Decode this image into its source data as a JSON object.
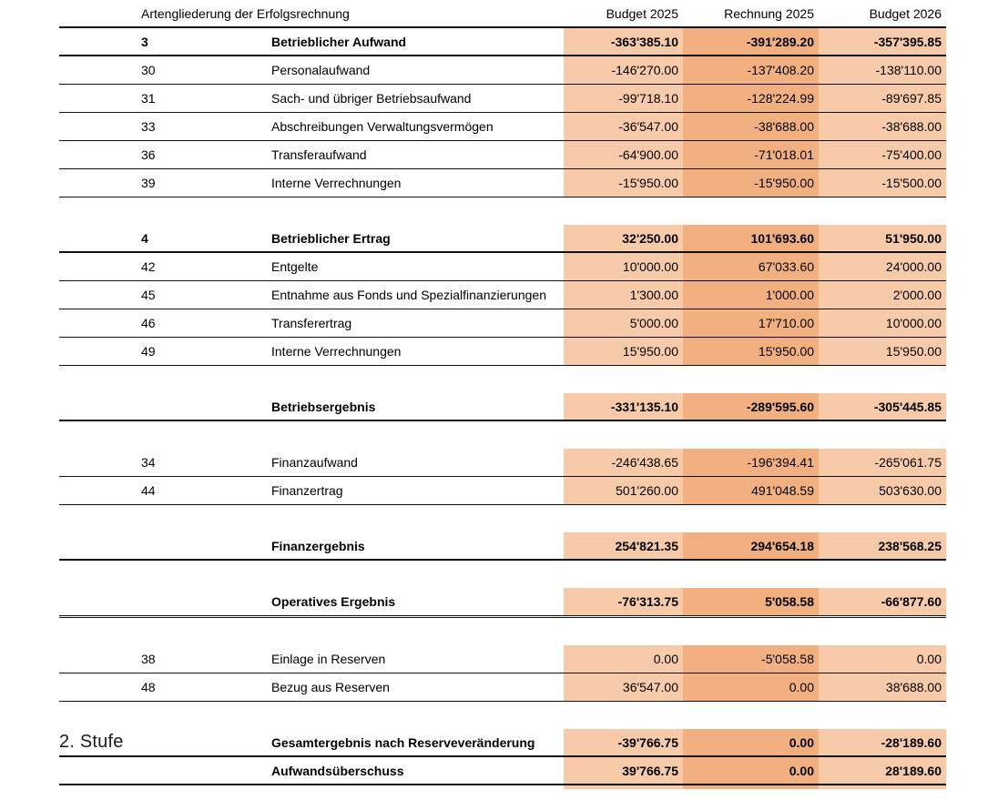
{
  "header": {
    "row_axis_label": "Artengliederung der Erfolgsrechnung",
    "columns": [
      "Budget 2025",
      "Rechnung 2025",
      "Budget 2026"
    ]
  },
  "stufe_label": "2. Stufe",
  "colors": {
    "value_column_light": "#F7CBA9",
    "value_column_dark": "#F2B080",
    "rule": "#111111"
  },
  "sections": [
    {
      "rows": [
        {
          "code": "3",
          "label": "Betrieblicher Aufwand",
          "bold": true,
          "sep": "thick",
          "values": [
            "-363'385.10",
            "-391'289.20",
            "-357'395.85"
          ]
        },
        {
          "code": "30",
          "label": "Personalaufwand",
          "bold": false,
          "sep": "thin",
          "values": [
            "-146'270.00",
            "-137'408.20",
            "-138'110.00"
          ]
        },
        {
          "code": "31",
          "label": "Sach- und übriger Betriebsaufwand",
          "bold": false,
          "sep": "thin",
          "values": [
            "-99'718.10",
            "-128'224.99",
            "-89'697.85"
          ]
        },
        {
          "code": "33",
          "label": "Abschreibungen Verwaltungsvermögen",
          "bold": false,
          "sep": "thin",
          "values": [
            "-36'547.00",
            "-38'688.00",
            "-38'688.00"
          ]
        },
        {
          "code": "36",
          "label": "Transferaufwand",
          "bold": false,
          "sep": "thin",
          "values": [
            "-64'900.00",
            "-71'018.01",
            "-75'400.00"
          ]
        },
        {
          "code": "39",
          "label": "Interne Verrechnungen",
          "bold": false,
          "sep": "thin",
          "values": [
            "-15'950.00",
            "-15'950.00",
            "-15'500.00"
          ]
        }
      ]
    },
    {
      "rows": [
        {
          "code": "4",
          "label": "Betrieblicher Ertrag",
          "bold": true,
          "sep": "thick",
          "values": [
            "32'250.00",
            "101'693.60",
            "51'950.00"
          ]
        },
        {
          "code": "42",
          "label": "Entgelte",
          "bold": false,
          "sep": "thin",
          "values": [
            "10'000.00",
            "67'033.60",
            "24'000.00"
          ]
        },
        {
          "code": "45",
          "label": "Entnahme aus Fonds und Spezialfinanzierungen",
          "bold": false,
          "sep": "thin",
          "values": [
            "1'300.00",
            "1'000.00",
            "2'000.00"
          ]
        },
        {
          "code": "46",
          "label": "Transferertrag",
          "bold": false,
          "sep": "thin",
          "values": [
            "5'000.00",
            "17'710.00",
            "10'000.00"
          ]
        },
        {
          "code": "49",
          "label": "Interne Verrechnungen",
          "bold": false,
          "sep": "thin",
          "values": [
            "15'950.00",
            "15'950.00",
            "15'950.00"
          ]
        }
      ]
    },
    {
      "rows": [
        {
          "code": "",
          "label": "Betriebsergebnis",
          "bold": true,
          "sep": "thick",
          "values": [
            "-331'135.10",
            "-289'595.60",
            "-305'445.85"
          ]
        }
      ]
    },
    {
      "rows": [
        {
          "code": "34",
          "label": "Finanzaufwand",
          "bold": false,
          "sep": "thin",
          "values": [
            "-246'438.65",
            "-196'394.41",
            "-265'061.75"
          ]
        },
        {
          "code": "44",
          "label": "Finanzertrag",
          "bold": false,
          "sep": "thin",
          "values": [
            "501'260.00",
            "491'048.59",
            "503'630.00"
          ]
        }
      ]
    },
    {
      "rows": [
        {
          "code": "",
          "label": "Finanzergebnis",
          "bold": true,
          "sep": "thick",
          "values": [
            "254'821.35",
            "294'654.18",
            "238'568.25"
          ]
        }
      ]
    },
    {
      "rows": [
        {
          "code": "",
          "label": "Operatives Ergebnis",
          "bold": true,
          "sep": "double",
          "values": [
            "-76'313.75",
            "5'058.58",
            "-66'877.60"
          ]
        }
      ]
    },
    {
      "rows": [
        {
          "code": "38",
          "label": "Einlage in Reserven",
          "bold": false,
          "sep": "thin",
          "values": [
            "0.00",
            "-5'058.58",
            "0.00"
          ]
        },
        {
          "code": "48",
          "label": "Bezug aus Reserven",
          "bold": false,
          "sep": "thin",
          "values": [
            "36'547.00",
            "0.00",
            "38'688.00"
          ]
        }
      ]
    },
    {
      "tail": true,
      "rows": [
        {
          "code": "",
          "label": "Gesamtergebnis nach Reserveveränderung",
          "bold": true,
          "sep": "thick",
          "values": [
            "-39'766.75",
            "0.00",
            "-28'189.60"
          ]
        },
        {
          "code": "",
          "label": "Aufwandsüberschuss",
          "bold": true,
          "sep": "thick",
          "values": [
            "39'766.75",
            "0.00",
            "28'189.60"
          ]
        }
      ]
    }
  ]
}
